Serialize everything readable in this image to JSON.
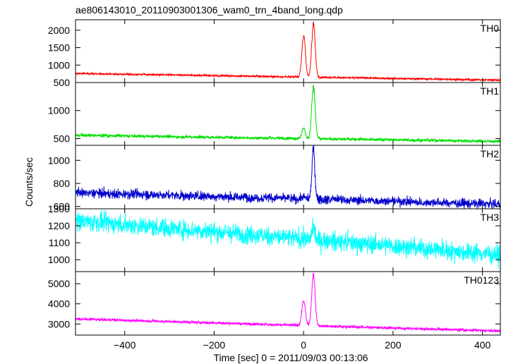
{
  "chart_data": {
    "type": "line",
    "title": "ae806143010_20110903001306_wam0_trn_4band_long.qdp",
    "xlabel": "Time [sec] 0 = 2011/09/03 00:13:06",
    "ylabel": "Counts/sec",
    "xlim": [
      -510,
      440
    ],
    "xticks": [
      -400,
      -200,
      0,
      200,
      400
    ],
    "xtick_labels": [
      "−400",
      "−200",
      "0",
      "200",
      "400"
    ],
    "legend": "none",
    "grid": false,
    "panels": [
      {
        "name": "TH0",
        "color": "#ff0000",
        "ylim": [
          500,
          2300
        ],
        "yticks": [
          500,
          1000,
          1500,
          2000
        ],
        "ytick_labels": [
          "500",
          "1000",
          "1500",
          "2000"
        ],
        "baseline": [
          [
            -510,
            760
          ],
          [
            440,
            570
          ]
        ],
        "noise": 28,
        "peaks": [
          [
            0,
            1950,
            6
          ],
          [
            22,
            2300,
            6
          ]
        ]
      },
      {
        "name": "TH1",
        "color": "#00e000",
        "ylim": [
          380,
          1500
        ],
        "yticks": [
          500,
          1000
        ],
        "ytick_labels": [
          "500",
          "1000"
        ],
        "baseline": [
          [
            -510,
            560
          ],
          [
            440,
            450
          ]
        ],
        "noise": 28,
        "peaks": [
          [
            0,
            700,
            6
          ],
          [
            22,
            1500,
            6
          ]
        ]
      },
      {
        "name": "TH2",
        "color": "#0000cc",
        "ylim": [
          580,
          1130
        ],
        "yticks": [
          600,
          800,
          1000
        ],
        "ytick_labels": [
          "600",
          "800",
          "1000"
        ],
        "baseline": [
          [
            -510,
            720
          ],
          [
            440,
            620
          ]
        ],
        "noise": 40,
        "peaks": [
          [
            0,
            690,
            5
          ],
          [
            22,
            1130,
            5
          ]
        ]
      },
      {
        "name": "TH3",
        "color": "#00ffff",
        "ylim": [
          930,
          1300
        ],
        "yticks": [
          1000,
          1100,
          1200,
          1300
        ],
        "ytick_labels": [
          "1000",
          "1100",
          "1200",
          "1300"
        ],
        "baseline": [
          [
            -510,
            1230
          ],
          [
            440,
            1030
          ]
        ],
        "noise": 55,
        "peaks": [
          [
            22,
            1200,
            5
          ]
        ]
      },
      {
        "name": "TH0123",
        "color": "#ff00ff",
        "ylim": [
          2450,
          5600
        ],
        "yticks": [
          3000,
          4000,
          5000
        ],
        "ytick_labels": [
          "3000",
          "4000",
          "5000"
        ],
        "baseline": [
          [
            -510,
            3250
          ],
          [
            440,
            2650
          ]
        ],
        "noise": 70,
        "peaks": [
          [
            0,
            4300,
            6
          ],
          [
            22,
            5600,
            6
          ]
        ]
      }
    ]
  }
}
